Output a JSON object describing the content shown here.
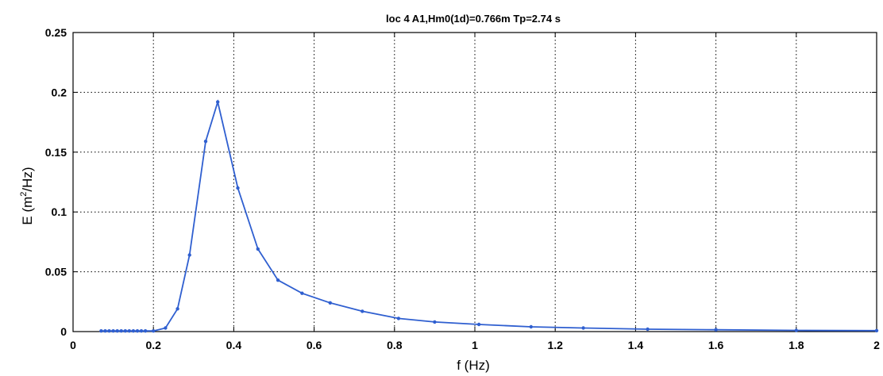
{
  "chart_data": {
    "type": "line",
    "title": "loc 4 A1,Hm0(1d)=0.766m Tp=2.74 s",
    "xlabel": "f (Hz)",
    "ylabel": "E (m²/Hz)",
    "ylabel_parts": {
      "main": "E (m",
      "sup": "2",
      "rest": "/Hz)"
    },
    "xlim": [
      0,
      2
    ],
    "ylim": [
      0,
      0.25
    ],
    "xticks": [
      0,
      0.2,
      0.4,
      0.6,
      0.8,
      1,
      1.2,
      1.4,
      1.6,
      1.8,
      2
    ],
    "yticks": [
      0,
      0.05,
      0.1,
      0.15,
      0.2,
      0.25
    ],
    "xtick_labels": [
      "0",
      "0.2",
      "0.4",
      "0.6",
      "0.8",
      "1",
      "1.2",
      "1.4",
      "1.6",
      "1.8",
      "2"
    ],
    "ytick_labels": [
      "0",
      "0.05",
      "0.1",
      "0.15",
      "0.2",
      "0.25"
    ],
    "grid": true,
    "line_color": "#2f5fd0",
    "series": [
      {
        "x": [
          0.07,
          0.08,
          0.09,
          0.1,
          0.11,
          0.12,
          0.13,
          0.14,
          0.15,
          0.16,
          0.17,
          0.18,
          0.2,
          0.23,
          0.26,
          0.29,
          0.33,
          0.36,
          0.41,
          0.46,
          0.51,
          0.57,
          0.64,
          0.72,
          0.81,
          0.9,
          1.01,
          1.14,
          1.27,
          1.43,
          1.6,
          1.8,
          2.0
        ],
        "y": [
          0.0005,
          0.0005,
          0.0005,
          0.0005,
          0.0005,
          0.0005,
          0.0005,
          0.0005,
          0.0005,
          0.0005,
          0.0005,
          0.0005,
          0.0005,
          0.003,
          0.019,
          0.064,
          0.159,
          0.192,
          0.12,
          0.069,
          0.043,
          0.032,
          0.024,
          0.017,
          0.011,
          0.008,
          0.006,
          0.004,
          0.003,
          0.002,
          0.0015,
          0.001,
          0.0008
        ]
      }
    ]
  }
}
